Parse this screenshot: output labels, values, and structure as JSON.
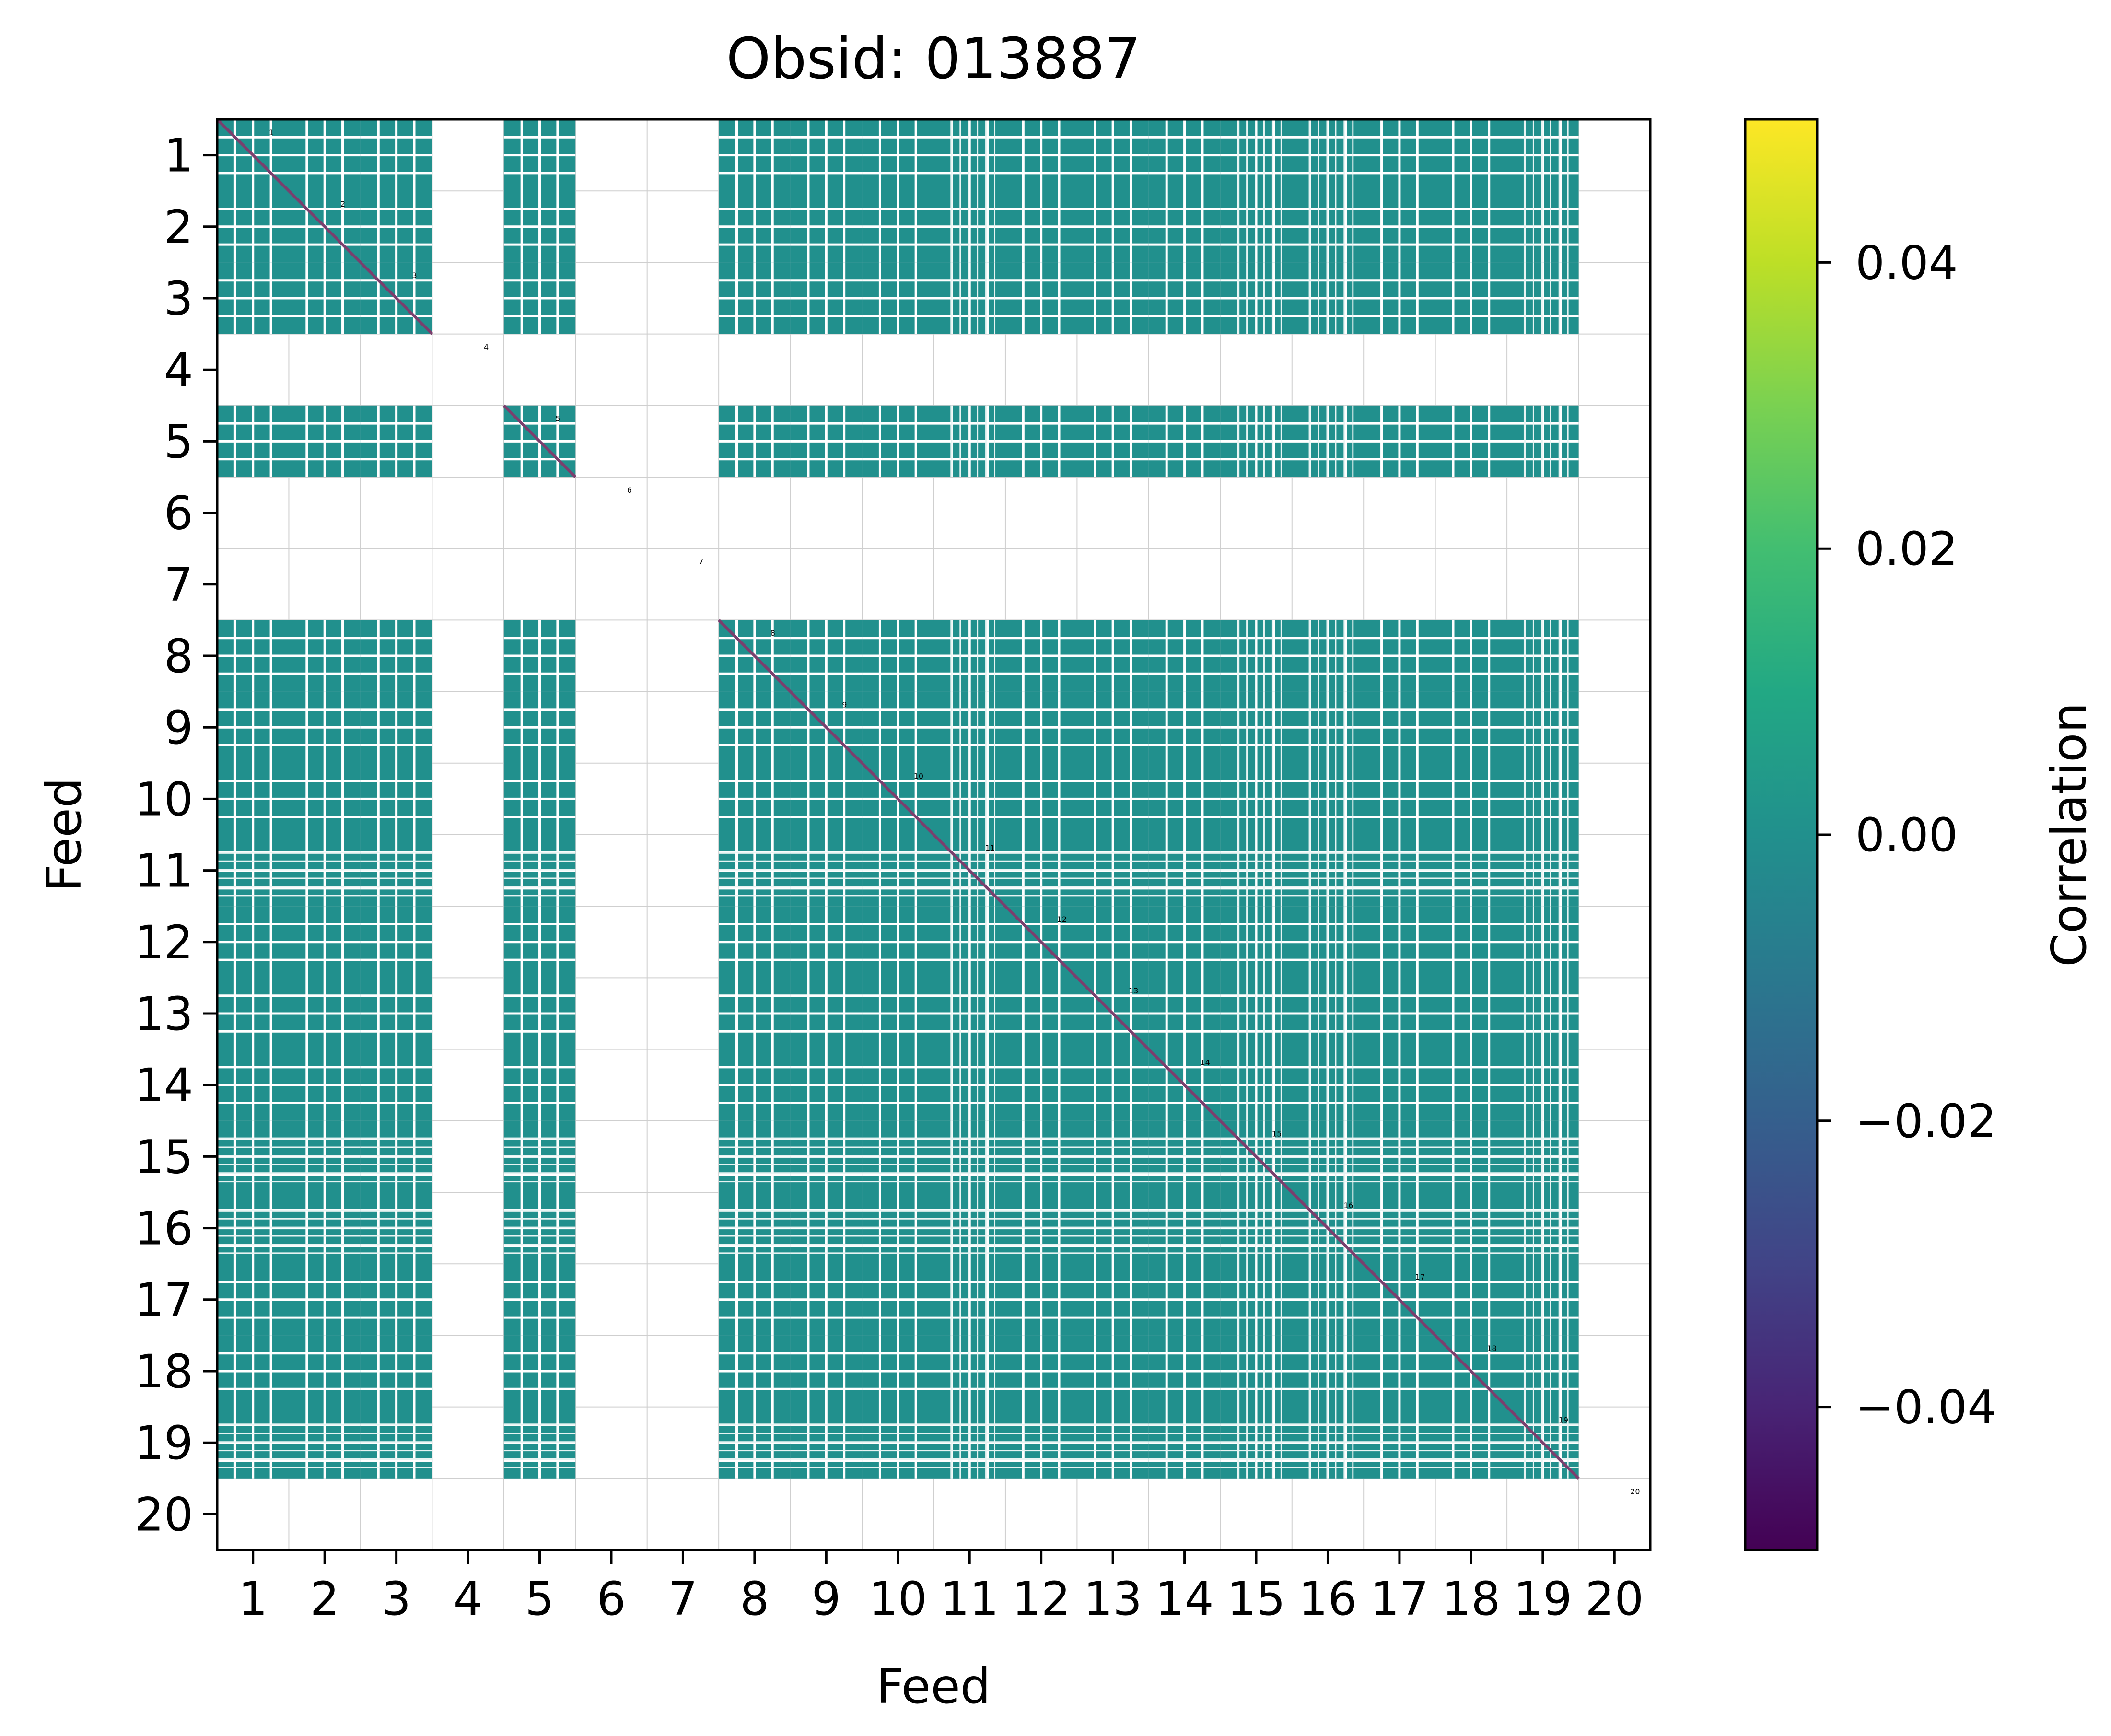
{
  "chart_data": {
    "type": "heatmap",
    "title": "Obsid: 013887",
    "xlabel": "Feed",
    "ylabel": "Feed",
    "x_ticks": [
      "1",
      "2",
      "3",
      "4",
      "5",
      "6",
      "7",
      "8",
      "9",
      "10",
      "11",
      "12",
      "13",
      "14",
      "15",
      "16",
      "17",
      "18",
      "19",
      "20"
    ],
    "y_ticks": [
      "1",
      "2",
      "3",
      "4",
      "5",
      "6",
      "7",
      "8",
      "9",
      "10",
      "11",
      "12",
      "13",
      "14",
      "15",
      "16",
      "17",
      "18",
      "19",
      "20"
    ],
    "feeds": [
      1,
      2,
      3,
      4,
      5,
      6,
      7,
      8,
      9,
      10,
      11,
      12,
      13,
      14,
      15,
      16,
      17,
      18,
      19,
      20
    ],
    "valid_feeds": [
      1,
      2,
      3,
      5,
      8,
      9,
      10,
      11,
      12,
      13,
      14,
      15,
      16,
      17,
      18,
      19
    ],
    "missing_feeds": [
      4,
      6,
      7,
      20
    ],
    "partial_feeds": [
      11,
      15,
      16,
      19
    ],
    "diagonal_labels": [
      "1",
      "2",
      "3",
      "4",
      "5",
      "6",
      "7",
      "8",
      "9",
      "10",
      "11",
      "12",
      "13",
      "14",
      "15",
      "16",
      "17",
      "18",
      "19",
      "20"
    ],
    "typical_value": 0.0,
    "colorbar": {
      "label": "Correlation",
      "vmin": -0.05,
      "vmax": 0.05,
      "ticks": [
        0.04,
        0.02,
        0.0,
        -0.02,
        -0.04
      ],
      "tick_labels": [
        "0.04",
        "0.02",
        "0.00",
        "−0.02",
        "−0.04"
      ],
      "colormap": "viridis"
    },
    "grid": true
  },
  "colors": {
    "cell": "#21908d",
    "diagonal": "#7a3f6e",
    "gridline": "#cfcfcf",
    "viridis": [
      "#440154",
      "#482475",
      "#414487",
      "#355f8d",
      "#2a788e",
      "#21908d",
      "#22a884",
      "#42be71",
      "#7ad151",
      "#bddf26",
      "#fde725"
    ]
  }
}
